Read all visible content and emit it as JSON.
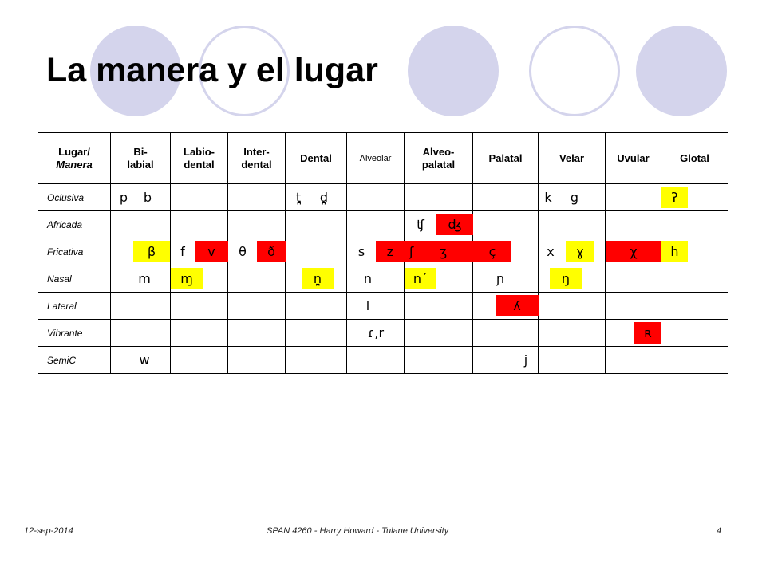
{
  "slide": {
    "title": "La manera y el lugar",
    "footer": {
      "date": "12-sep-2014",
      "center": "SPAN 4260 - Harry Howard - Tulane University",
      "page": "4"
    }
  },
  "colors": {
    "circle": "#d4d4ec",
    "highlight_red": "#ff0000",
    "highlight_yellow": "#ffff00"
  },
  "table": {
    "header": {
      "corner": {
        "line1": "Lugar/",
        "line2": "Manera"
      },
      "columns": [
        {
          "line1": "Bi-",
          "line2": "labial"
        },
        {
          "line1": "Labio-",
          "line2": "dental"
        },
        {
          "line1": "Inter-",
          "line2": "dental"
        },
        {
          "line1": "Dental",
          "line2": ""
        },
        {
          "line1": "Alveolar",
          "line2": ""
        },
        {
          "line1": "Alveo-",
          "line2": "palatal"
        },
        {
          "line1": "Palatal",
          "line2": ""
        },
        {
          "line1": "Velar",
          "line2": ""
        },
        {
          "line1": "Uvular",
          "line2": ""
        },
        {
          "line1": "Glotal",
          "line2": ""
        }
      ]
    },
    "rows": {
      "oclusiva": {
        "label": "Oclusiva",
        "bilabial_p": "p",
        "bilabial_b": "b",
        "dental_t": "t̪",
        "dental_d": "d̪",
        "velar_k": "k",
        "velar_g": "g",
        "glotal": "ʔ"
      },
      "africada": {
        "label": "Africada",
        "alveopalatal_vl": "ʧ",
        "alveopalatal_vd": "ʤ"
      },
      "fricativa": {
        "label": "Fricativa",
        "bilabial": "β",
        "labiodental_f": "f",
        "labiodental_v": "v",
        "interdental_theta": "θ",
        "interdental_eth": "ð",
        "alveolar_s": "s",
        "alveolar_z": "z",
        "alveopalatal_esh": "ʃ",
        "alveopalatal_ezh": "ʒ",
        "palatal": "ç",
        "velar_x": "x",
        "velar_gamma": "ɣ",
        "uvular": "χ",
        "glotal": "h"
      },
      "nasal": {
        "label": "Nasal",
        "bilabial": "m",
        "labiodental": "ɱ",
        "dental": "n̪",
        "alveolar": "n",
        "alveopalatal": "n´",
        "palatal": "ɲ",
        "velar": "ŋ"
      },
      "lateral": {
        "label": "Lateral",
        "alveolar": "l",
        "palatal": "ʎ"
      },
      "vibrante": {
        "label": "Vibrante",
        "alveolar": "ɾ,r",
        "uvular": "ʀ"
      },
      "semic": {
        "label": "SemiC",
        "bilabial": "w",
        "palatal": "j"
      }
    }
  }
}
